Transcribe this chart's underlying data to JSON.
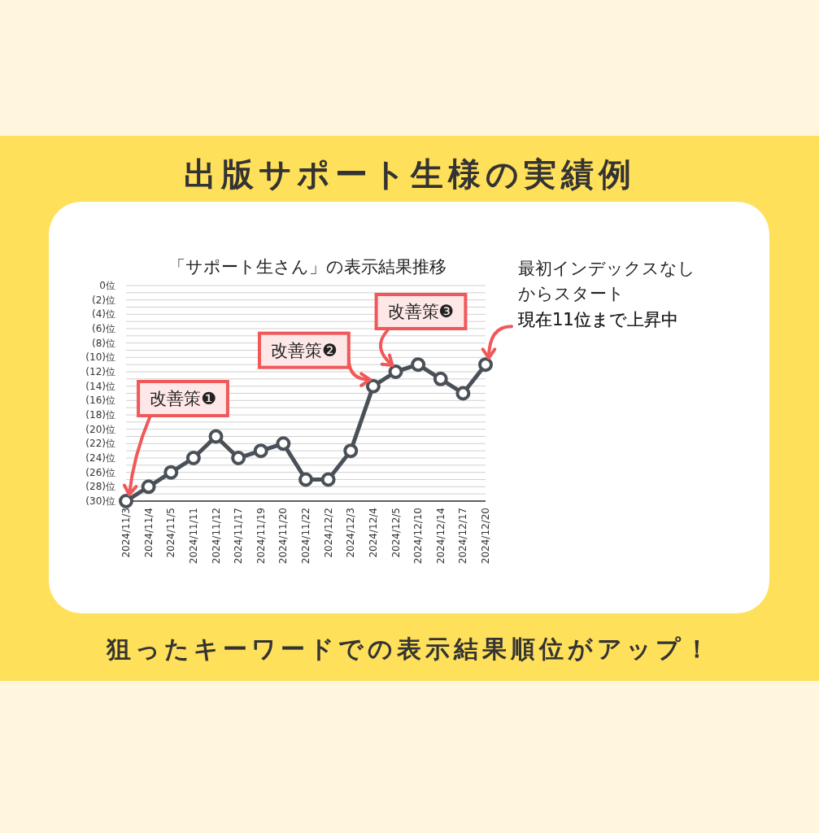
{
  "chart_data": {
    "type": "line",
    "title": "出版サポート生様の実績例",
    "subtitle": "「サポート生さん」の表示結果推移",
    "categories": [
      "2024/11/3",
      "2024/11/4",
      "2024/11/5",
      "2024/11/11",
      "2024/11/12",
      "2024/11/17",
      "2024/11/19",
      "2024/11/20",
      "2024/11/22",
      "2024/12/2",
      "2024/12/3",
      "2024/12/4",
      "2024/12/5",
      "2024/12/10",
      "2024/12/14",
      "2024/12/17",
      "2024/12/20"
    ],
    "series": [
      {
        "color": "#4a5058",
        "values": [
          30,
          28,
          26,
          24,
          21,
          24,
          23,
          22,
          27,
          27,
          23,
          14,
          12,
          11,
          13,
          15,
          11
        ]
      }
    ],
    "ylim": [
      30,
      0
    ],
    "yticks": [
      {
        "value": 0,
        "label": "0位"
      },
      {
        "value": 1,
        "label": null
      },
      {
        "value": 2,
        "label": "(2)位"
      },
      {
        "value": 3,
        "label": null
      },
      {
        "value": 4,
        "label": "(4)位"
      },
      {
        "value": 5,
        "label": null
      },
      {
        "value": 6,
        "label": "(6)位"
      },
      {
        "value": 7,
        "label": null
      },
      {
        "value": 8,
        "label": "(8)位"
      },
      {
        "value": 9,
        "label": null
      },
      {
        "value": 10,
        "label": "(10)位"
      },
      {
        "value": 11,
        "label": null
      },
      {
        "value": 12,
        "label": "(12)位"
      },
      {
        "value": 13,
        "label": null
      },
      {
        "value": 14,
        "label": "(14)位"
      },
      {
        "value": 15,
        "label": null
      },
      {
        "value": 16,
        "label": "(16)位"
      },
      {
        "value": 17,
        "label": null
      },
      {
        "value": 18,
        "label": "(18)位"
      },
      {
        "value": 19,
        "label": null
      },
      {
        "value": 20,
        "label": "(20)位"
      },
      {
        "value": 21,
        "label": null
      },
      {
        "value": 22,
        "label": "(22)位"
      },
      {
        "value": 23,
        "label": null
      },
      {
        "value": 24,
        "label": "(24)位"
      },
      {
        "value": 25,
        "label": null
      },
      {
        "value": 26,
        "label": "(26)位"
      },
      {
        "value": 27,
        "label": null
      },
      {
        "value": 28,
        "label": "(28)位"
      },
      {
        "value": 29,
        "label": null
      },
      {
        "value": 30,
        "label": "(30)位"
      }
    ],
    "grid": "y",
    "marker": "circle",
    "line_style": "solid",
    "annotations": [
      {
        "text": "改善策❶",
        "x": "2024/11/3",
        "y": 30
      },
      {
        "text": "改善策❷",
        "x": "2024/12/4",
        "y": 14
      },
      {
        "text": "改善策❸",
        "x": "2024/12/5",
        "y": 12
      },
      "最初インデックスなしからスタート",
      {
        "text": "現在11位まで上昇中",
        "x": "2024/12/20",
        "y": 11
      },
      "狙ったキーワードでの表示結果順位がアップ！"
    ]
  }
}
